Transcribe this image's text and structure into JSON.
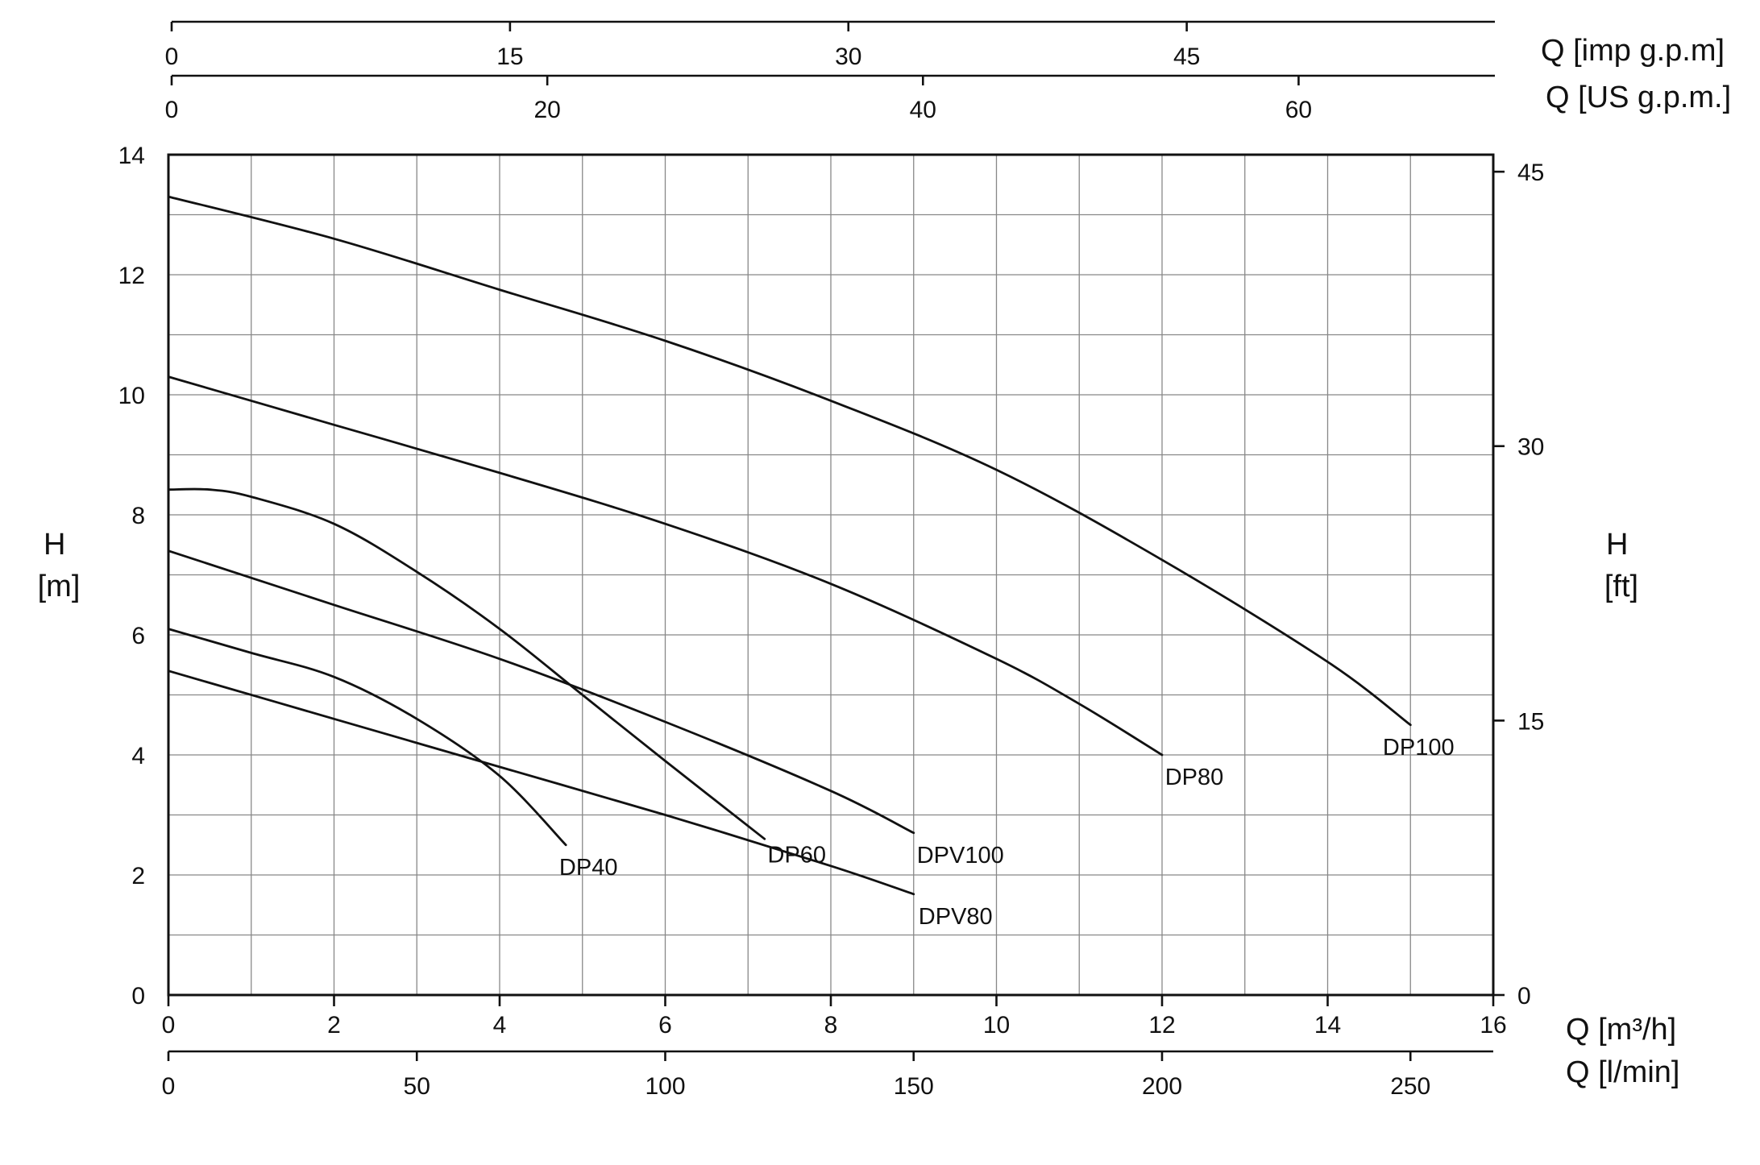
{
  "chart_data": {
    "type": "line",
    "title": "",
    "xlabel": "Q [m³/h]",
    "ylabel": "H\n[m]",
    "xlim": [
      0,
      16
    ],
    "ylim": [
      0,
      14
    ],
    "x_ticks": [
      "0",
      "2",
      "4",
      "6",
      "8",
      "10",
      "12",
      "14",
      "16"
    ],
    "y_ticks": [
      "0",
      "2",
      "4",
      "6",
      "8",
      "10",
      "12",
      "14"
    ],
    "grid": true,
    "secondary_axes": {
      "right": {
        "label": "H\n[ft]",
        "range": [
          0,
          45.93
        ],
        "ticks": [
          0,
          15,
          30,
          45
        ]
      },
      "bottom2": {
        "label": "Q [l/min]",
        "range": [
          0,
          266.67
        ],
        "ticks": [
          0,
          50,
          100,
          150,
          200,
          250
        ]
      },
      "top_us": {
        "label": "Q [US g.p.m.]",
        "range": [
          0,
          70.45
        ],
        "ticks": [
          0,
          20,
          40,
          60
        ]
      },
      "top_imp": {
        "label": "Q [imp g.p.m]",
        "range": [
          0,
          58.66
        ],
        "ticks": [
          0,
          15,
          30,
          45
        ]
      }
    },
    "series": [
      {
        "name": "DP100",
        "x": [
          0,
          2,
          4,
          6,
          8,
          10,
          12,
          14,
          15
        ],
        "y": [
          13.3,
          12.6,
          11.75,
          10.9,
          9.9,
          8.75,
          7.25,
          5.55,
          4.5
        ]
      },
      {
        "name": "DP80",
        "x": [
          0,
          2,
          4,
          6,
          8,
          10,
          11,
          12
        ],
        "y": [
          10.3,
          9.5,
          8.7,
          7.85,
          6.85,
          5.6,
          4.85,
          4.0
        ]
      },
      {
        "name": "DP60",
        "x": [
          0,
          0.5,
          1,
          2,
          3,
          4,
          5,
          6,
          7.2
        ],
        "y": [
          8.42,
          8.42,
          8.3,
          7.85,
          7.05,
          6.1,
          5.0,
          3.9,
          2.6
        ]
      },
      {
        "name": "DPV100",
        "x": [
          0,
          2,
          4,
          6,
          8,
          9
        ],
        "y": [
          7.4,
          6.5,
          5.6,
          4.55,
          3.4,
          2.7
        ]
      },
      {
        "name": "DPV80",
        "x": [
          0,
          2,
          4,
          6,
          8,
          9
        ],
        "y": [
          5.4,
          4.6,
          3.8,
          3.0,
          2.15,
          1.68
        ]
      },
      {
        "name": "DP40",
        "x": [
          0,
          1,
          2,
          3,
          4,
          4.8
        ],
        "y": [
          6.1,
          5.7,
          5.3,
          4.6,
          3.65,
          2.5
        ]
      }
    ],
    "annotations": [
      "DP100",
      "DP80",
      "DP60",
      "DPV100",
      "DPV80",
      "DP40"
    ]
  }
}
